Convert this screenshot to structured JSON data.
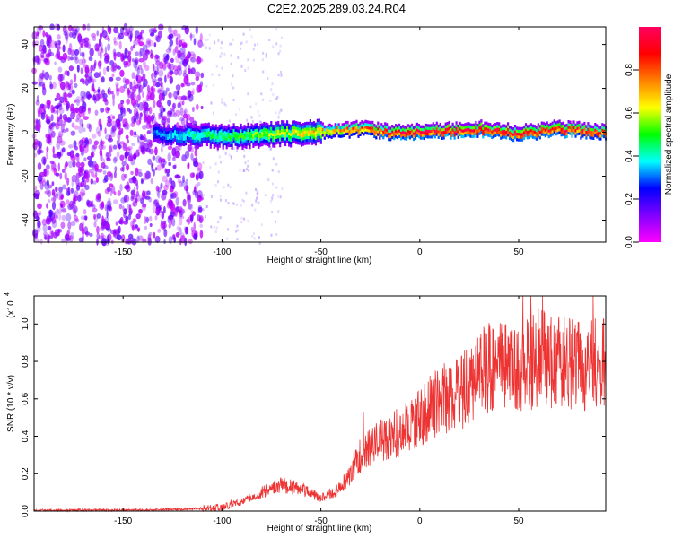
{
  "title": "C2E2.2025.289.03.24.R04",
  "chart_data": [
    {
      "type": "heatmap",
      "xlabel": "Height of straight line (km)",
      "ylabel": "Frequency (Hz)",
      "xlim": [
        -195,
        94
      ],
      "ylim": [
        -50,
        48
      ],
      "xticks": [
        -150,
        -100,
        -50,
        0,
        50
      ],
      "yticks": [
        -40,
        -20,
        0,
        20,
        40
      ],
      "colorbar": {
        "label": "Normalized spectral amplitude",
        "range": [
          0.0,
          1.0
        ],
        "ticks": [
          0.0,
          0.2,
          0.4,
          0.6,
          0.8
        ],
        "colormap": [
          "#ff00ff",
          "#8000ff",
          "#0000ff",
          "#00ffff",
          "#00ff00",
          "#ffff00",
          "#ff8000",
          "#ff0000",
          "#ff0060"
        ]
      },
      "ridge": {
        "description_points_x": [
          -135,
          -110,
          -90,
          -70,
          -50,
          -30,
          -10,
          10,
          30,
          50,
          70,
          94
        ],
        "frequency_center": [
          0,
          -1,
          -1,
          0,
          1,
          2,
          0,
          1,
          2,
          0,
          2,
          0
        ],
        "peak_amplitude": [
          0.3,
          0.45,
          0.5,
          0.6,
          0.7,
          0.8,
          0.95,
          0.95,
          0.95,
          0.95,
          0.95,
          0.9
        ]
      }
    },
    {
      "type": "line",
      "xlabel": "Height of straight line (km)",
      "ylabel": "SNR (10 * v/v)",
      "y_multiplier": "(x10",
      "y_multiplier_exp": "4",
      "xlim": [
        -195,
        94
      ],
      "ylim": [
        0,
        1.15
      ],
      "xticks": [
        -150,
        -100,
        -50,
        0,
        50
      ],
      "yticks": [
        0.0,
        0.2,
        0.4,
        0.6,
        0.8,
        1.0
      ],
      "color": "#ee3333",
      "series": [
        {
          "x": [
            -195,
            -180,
            -160,
            -140,
            -120,
            -100,
            -90,
            -80,
            -70,
            -60,
            -50,
            -40,
            -30,
            -20,
            -10,
            0,
            10,
            20,
            30,
            40,
            50,
            60,
            70,
            80,
            94
          ],
          "values": [
            0.005,
            0.005,
            0.005,
            0.005,
            0.01,
            0.02,
            0.05,
            0.1,
            0.14,
            0.12,
            0.07,
            0.12,
            0.3,
            0.38,
            0.42,
            0.5,
            0.6,
            0.62,
            0.75,
            0.78,
            0.75,
            0.82,
            0.8,
            0.78,
            0.78
          ]
        }
      ]
    }
  ]
}
